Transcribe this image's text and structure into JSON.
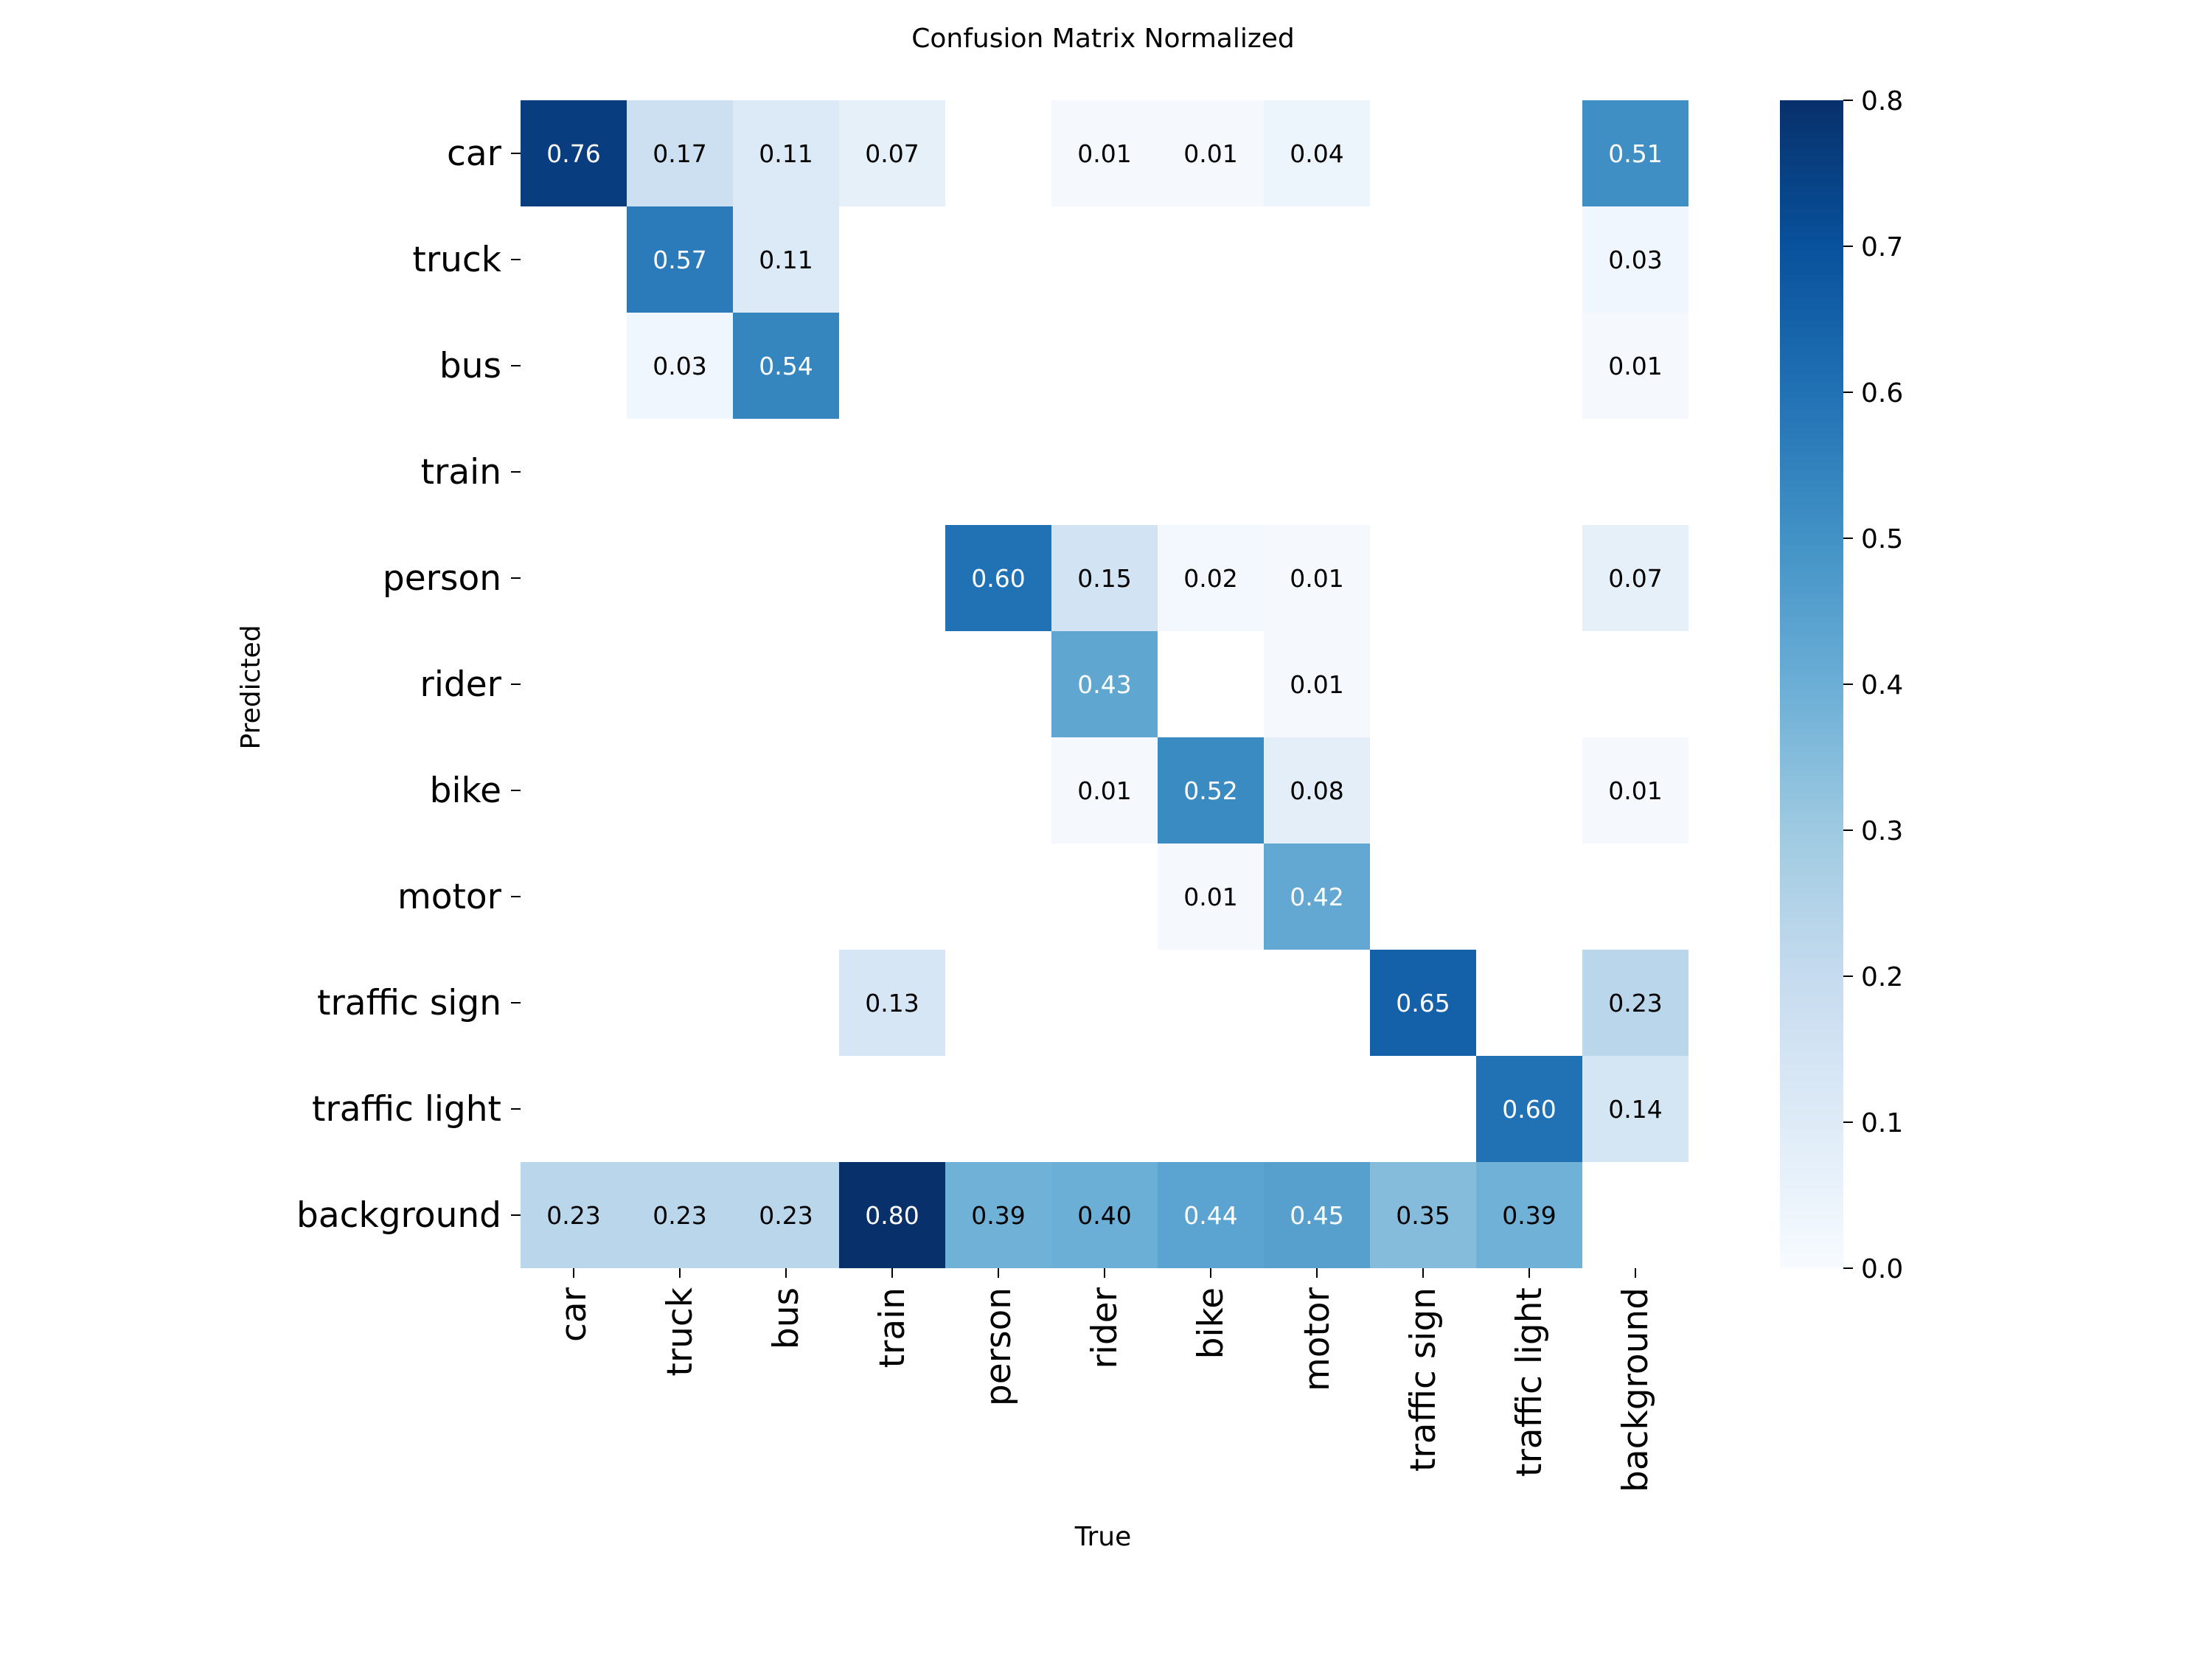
{
  "chart_data": {
    "type": "heatmap",
    "title": "Confusion Matrix Normalized",
    "xlabel": "True",
    "ylabel": "Predicted",
    "x_categories": [
      "car",
      "truck",
      "bus",
      "train",
      "person",
      "rider",
      "bike",
      "motor",
      "traffic sign",
      "traffic light",
      "background"
    ],
    "y_categories": [
      "car",
      "truck",
      "bus",
      "train",
      "person",
      "rider",
      "bike",
      "motor",
      "traffic sign",
      "traffic light",
      "background"
    ],
    "values": [
      [
        0.76,
        0.17,
        0.11,
        0.07,
        null,
        0.01,
        0.01,
        0.04,
        null,
        null,
        0.51
      ],
      [
        null,
        0.57,
        0.11,
        null,
        null,
        null,
        null,
        null,
        null,
        null,
        0.03
      ],
      [
        null,
        0.03,
        0.54,
        null,
        null,
        null,
        null,
        null,
        null,
        null,
        0.01
      ],
      [
        null,
        null,
        null,
        null,
        null,
        null,
        null,
        null,
        null,
        null,
        null
      ],
      [
        null,
        null,
        null,
        null,
        0.6,
        0.15,
        0.02,
        0.01,
        null,
        null,
        0.07
      ],
      [
        null,
        null,
        null,
        null,
        null,
        0.43,
        null,
        0.01,
        null,
        null,
        null
      ],
      [
        null,
        null,
        null,
        null,
        null,
        0.01,
        0.52,
        0.08,
        null,
        null,
        0.01
      ],
      [
        null,
        null,
        null,
        null,
        null,
        null,
        0.01,
        0.42,
        null,
        null,
        null
      ],
      [
        null,
        null,
        null,
        0.13,
        null,
        null,
        null,
        null,
        0.65,
        null,
        0.23
      ],
      [
        null,
        null,
        null,
        null,
        null,
        null,
        null,
        null,
        null,
        0.6,
        0.14
      ],
      [
        0.23,
        0.23,
        0.23,
        0.8,
        0.39,
        0.4,
        0.44,
        0.45,
        0.35,
        0.39,
        null
      ]
    ],
    "value_format": "0.00",
    "colormap": "Blues",
    "colorbar": {
      "range": [
        0.0,
        0.8
      ],
      "ticks": [
        0.0,
        0.1,
        0.2,
        0.3,
        0.4,
        0.5,
        0.6,
        0.7,
        0.8
      ],
      "tick_labels": [
        "0.0",
        "0.1",
        "0.2",
        "0.3",
        "0.4",
        "0.5",
        "0.6",
        "0.7",
        "0.8"
      ],
      "placement": "right"
    },
    "grid": false,
    "colors": {
      "low": "#f7fbff",
      "high": "#08306b",
      "text_dark": "#000000",
      "text_light": "#ffffff"
    }
  }
}
